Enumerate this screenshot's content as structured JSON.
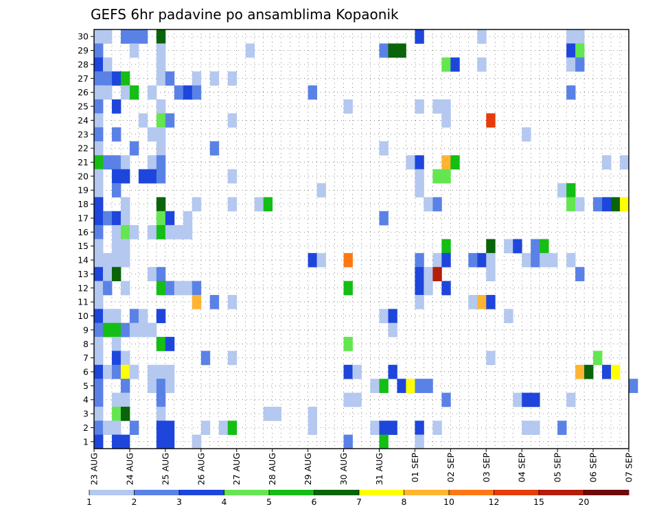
{
  "chart_data": {
    "type": "heatmap",
    "title": "GEFS 6hr padavine po ansamblima Kopaonik",
    "xlabel": "",
    "ylabel": "",
    "x_start": "2023-08-23",
    "x_ticks": [
      "23 AUG",
      "24 AUG",
      "25 AUG",
      "26 AUG",
      "27 AUG",
      "28 AUG",
      "29 AUG",
      "30 AUG",
      "31 AUG",
      "01 SEP",
      "02 SEP",
      "03 SEP",
      "04 SEP",
      "05 SEP",
      "06 SEP",
      "07 SEP"
    ],
    "y_ticks": [
      1,
      2,
      3,
      4,
      5,
      6,
      7,
      8,
      9,
      10,
      11,
      12,
      13,
      14,
      15,
      16,
      17,
      18,
      19,
      20,
      21,
      22,
      23,
      24,
      25,
      26,
      27,
      28,
      29,
      30
    ],
    "ylim": [
      0,
      30
    ],
    "grid": true,
    "colorbar": {
      "ticks": [
        "1",
        "2",
        "3",
        "4",
        "5",
        "6",
        "7",
        "8",
        "10",
        "12",
        "15",
        "20"
      ],
      "colors": [
        "#b4c8f0",
        "#5a82e6",
        "#1e46dc",
        "#64e650",
        "#14be14",
        "#0a640a",
        "#ffff00",
        "#ffb432",
        "#ff7814",
        "#e63c0a",
        "#b41e0a",
        "#6e0a0a"
      ]
    },
    "member_rows": [
      {
        "member": 30,
        "cells": [
          [
            0,
            1
          ],
          [
            1,
            1
          ],
          [
            3,
            2
          ],
          [
            4,
            2
          ],
          [
            5,
            2
          ],
          [
            7,
            6
          ],
          [
            36,
            3
          ],
          [
            43,
            1
          ],
          [
            53,
            1
          ],
          [
            54,
            1
          ]
        ]
      },
      {
        "member": 29,
        "cells": [
          [
            0,
            2
          ],
          [
            4,
            1
          ],
          [
            7,
            1
          ],
          [
            17,
            1
          ],
          [
            32,
            2
          ],
          [
            33,
            6
          ],
          [
            34,
            6
          ],
          [
            53,
            3
          ],
          [
            54,
            4
          ]
        ]
      },
      {
        "member": 28,
        "cells": [
          [
            0,
            3
          ],
          [
            1,
            1
          ],
          [
            7,
            1
          ],
          [
            39,
            4
          ],
          [
            40,
            3
          ],
          [
            43,
            1
          ],
          [
            53,
            1
          ],
          [
            54,
            2
          ]
        ]
      },
      {
        "member": 27,
        "cells": [
          [
            0,
            2
          ],
          [
            1,
            2
          ],
          [
            2,
            3
          ],
          [
            3,
            5
          ],
          [
            7,
            1
          ],
          [
            8,
            2
          ],
          [
            11,
            1
          ],
          [
            13,
            1
          ],
          [
            15,
            1
          ]
        ]
      },
      {
        "member": 26,
        "cells": [
          [
            0,
            1
          ],
          [
            1,
            1
          ],
          [
            3,
            1
          ],
          [
            4,
            5
          ],
          [
            6,
            1
          ],
          [
            9,
            2
          ],
          [
            10,
            3
          ],
          [
            11,
            2
          ],
          [
            24,
            2
          ],
          [
            53,
            2
          ]
        ]
      },
      {
        "member": 25,
        "cells": [
          [
            0,
            2
          ],
          [
            2,
            3
          ],
          [
            7,
            1
          ],
          [
            28,
            1
          ],
          [
            36,
            1
          ],
          [
            38,
            1
          ],
          [
            39,
            1
          ]
        ]
      },
      {
        "member": 24,
        "cells": [
          [
            0,
            1
          ],
          [
            5,
            1
          ],
          [
            7,
            4
          ],
          [
            8,
            2
          ],
          [
            15,
            1
          ],
          [
            39,
            1
          ],
          [
            44,
            10
          ]
        ]
      },
      {
        "member": 23,
        "cells": [
          [
            0,
            2
          ],
          [
            2,
            2
          ],
          [
            6,
            1
          ],
          [
            7,
            1
          ],
          [
            48,
            1
          ]
        ]
      },
      {
        "member": 22,
        "cells": [
          [
            0,
            1
          ],
          [
            4,
            2
          ],
          [
            7,
            1
          ],
          [
            13,
            2
          ],
          [
            32,
            1
          ]
        ]
      },
      {
        "member": 21,
        "cells": [
          [
            0,
            5
          ],
          [
            1,
            2
          ],
          [
            2,
            2
          ],
          [
            3,
            1
          ],
          [
            6,
            1
          ],
          [
            7,
            2
          ],
          [
            35,
            1
          ],
          [
            36,
            3
          ],
          [
            39,
            8
          ],
          [
            40,
            5
          ],
          [
            57,
            1
          ],
          [
            59,
            1
          ]
        ]
      },
      {
        "member": 20,
        "cells": [
          [
            0,
            1
          ],
          [
            2,
            3
          ],
          [
            3,
            3
          ],
          [
            5,
            3
          ],
          [
            6,
            3
          ],
          [
            7,
            2
          ],
          [
            15,
            1
          ],
          [
            36,
            1
          ],
          [
            38,
            4
          ],
          [
            39,
            4
          ]
        ]
      },
      {
        "member": 19,
        "cells": [
          [
            0,
            1
          ],
          [
            2,
            2
          ],
          [
            25,
            1
          ],
          [
            36,
            1
          ],
          [
            52,
            1
          ],
          [
            53,
            5
          ]
        ]
      },
      {
        "member": 18,
        "cells": [
          [
            0,
            3
          ],
          [
            3,
            1
          ],
          [
            7,
            6
          ],
          [
            11,
            1
          ],
          [
            15,
            1
          ],
          [
            18,
            1
          ],
          [
            19,
            5
          ],
          [
            37,
            1
          ],
          [
            38,
            2
          ],
          [
            53,
            4
          ],
          [
            54,
            1
          ],
          [
            56,
            2
          ],
          [
            57,
            3
          ],
          [
            58,
            6
          ],
          [
            59,
            7
          ]
        ]
      },
      {
        "member": 17,
        "cells": [
          [
            0,
            3
          ],
          [
            1,
            2
          ],
          [
            2,
            3
          ],
          [
            3,
            1
          ],
          [
            7,
            4
          ],
          [
            8,
            3
          ],
          [
            10,
            1
          ],
          [
            32,
            2
          ]
        ]
      },
      {
        "member": 16,
        "cells": [
          [
            0,
            2
          ],
          [
            2,
            1
          ],
          [
            3,
            4
          ],
          [
            4,
            1
          ],
          [
            6,
            1
          ],
          [
            7,
            5
          ],
          [
            8,
            1
          ],
          [
            9,
            1
          ],
          [
            10,
            1
          ]
        ]
      },
      {
        "member": 15,
        "cells": [
          [
            0,
            1
          ],
          [
            2,
            1
          ],
          [
            3,
            1
          ],
          [
            39,
            5
          ],
          [
            44,
            6
          ],
          [
            46,
            1
          ],
          [
            47,
            3
          ],
          [
            49,
            2
          ],
          [
            50,
            5
          ]
        ]
      },
      {
        "member": 14,
        "cells": [
          [
            0,
            1
          ],
          [
            1,
            1
          ],
          [
            2,
            1
          ],
          [
            3,
            1
          ],
          [
            24,
            3
          ],
          [
            25,
            1
          ],
          [
            28,
            9
          ],
          [
            36,
            2
          ],
          [
            38,
            1
          ],
          [
            39,
            3
          ],
          [
            42,
            2
          ],
          [
            43,
            3
          ],
          [
            44,
            1
          ],
          [
            48,
            1
          ],
          [
            49,
            2
          ],
          [
            50,
            1
          ],
          [
            51,
            1
          ],
          [
            53,
            1
          ]
        ]
      },
      {
        "member": 13,
        "cells": [
          [
            0,
            3
          ],
          [
            1,
            1
          ],
          [
            2,
            6
          ],
          [
            6,
            1
          ],
          [
            7,
            2
          ],
          [
            36,
            3
          ],
          [
            37,
            1
          ],
          [
            38,
            11
          ],
          [
            44,
            1
          ],
          [
            54,
            2
          ]
        ]
      },
      {
        "member": 12,
        "cells": [
          [
            0,
            1
          ],
          [
            1,
            2
          ],
          [
            3,
            1
          ],
          [
            7,
            5
          ],
          [
            8,
            2
          ],
          [
            9,
            1
          ],
          [
            10,
            1
          ],
          [
            11,
            2
          ],
          [
            28,
            5
          ],
          [
            36,
            3
          ],
          [
            37,
            1
          ],
          [
            39,
            3
          ]
        ]
      },
      {
        "member": 11,
        "cells": [
          [
            0,
            1
          ],
          [
            11,
            8
          ],
          [
            13,
            2
          ],
          [
            15,
            1
          ],
          [
            36,
            1
          ],
          [
            42,
            1
          ],
          [
            43,
            8
          ],
          [
            44,
            3
          ]
        ]
      },
      {
        "member": 10,
        "cells": [
          [
            0,
            3
          ],
          [
            1,
            1
          ],
          [
            2,
            1
          ],
          [
            4,
            2
          ],
          [
            5,
            1
          ],
          [
            7,
            3
          ],
          [
            32,
            1
          ],
          [
            33,
            3
          ],
          [
            46,
            1
          ]
        ]
      },
      {
        "member": 9,
        "cells": [
          [
            0,
            2
          ],
          [
            1,
            5
          ],
          [
            2,
            5
          ],
          [
            3,
            2
          ],
          [
            4,
            1
          ],
          [
            5,
            1
          ],
          [
            6,
            1
          ],
          [
            33,
            1
          ]
        ]
      },
      {
        "member": 8,
        "cells": [
          [
            0,
            1
          ],
          [
            2,
            1
          ],
          [
            7,
            5
          ],
          [
            8,
            3
          ],
          [
            28,
            4
          ]
        ]
      },
      {
        "member": 7,
        "cells": [
          [
            0,
            1
          ],
          [
            2,
            3
          ],
          [
            3,
            1
          ],
          [
            12,
            2
          ],
          [
            15,
            1
          ],
          [
            44,
            1
          ],
          [
            56,
            4
          ]
        ]
      },
      {
        "member": 6,
        "cells": [
          [
            0,
            3
          ],
          [
            1,
            1
          ],
          [
            2,
            2
          ],
          [
            3,
            7
          ],
          [
            4,
            1
          ],
          [
            6,
            1
          ],
          [
            7,
            1
          ],
          [
            8,
            1
          ],
          [
            28,
            3
          ],
          [
            29,
            1
          ],
          [
            33,
            3
          ],
          [
            54,
            8
          ],
          [
            55,
            6
          ],
          [
            57,
            3
          ],
          [
            58,
            7
          ]
        ]
      },
      {
        "member": 5,
        "cells": [
          [
            0,
            2
          ],
          [
            3,
            2
          ],
          [
            6,
            1
          ],
          [
            7,
            2
          ],
          [
            8,
            1
          ],
          [
            31,
            1
          ],
          [
            32,
            5
          ],
          [
            34,
            3
          ],
          [
            35,
            7
          ],
          [
            36,
            2
          ],
          [
            37,
            2
          ],
          [
            60,
            2
          ]
        ]
      },
      {
        "member": 4,
        "cells": [
          [
            0,
            2
          ],
          [
            2,
            1
          ],
          [
            3,
            1
          ],
          [
            7,
            2
          ],
          [
            28,
            1
          ],
          [
            29,
            1
          ],
          [
            39,
            2
          ],
          [
            47,
            1
          ],
          [
            48,
            3
          ],
          [
            49,
            3
          ],
          [
            53,
            1
          ]
        ]
      },
      {
        "member": 3,
        "cells": [
          [
            0,
            1
          ],
          [
            2,
            4
          ],
          [
            3,
            6
          ],
          [
            7,
            1
          ],
          [
            19,
            1
          ],
          [
            20,
            1
          ],
          [
            24,
            1
          ]
        ]
      },
      {
        "member": 2,
        "cells": [
          [
            0,
            2
          ],
          [
            1,
            1
          ],
          [
            2,
            1
          ],
          [
            4,
            2
          ],
          [
            7,
            3
          ],
          [
            8,
            3
          ],
          [
            12,
            1
          ],
          [
            14,
            1
          ],
          [
            15,
            5
          ],
          [
            24,
            1
          ],
          [
            31,
            1
          ],
          [
            32,
            3
          ],
          [
            33,
            3
          ],
          [
            36,
            3
          ],
          [
            38,
            1
          ],
          [
            48,
            1
          ],
          [
            49,
            1
          ],
          [
            52,
            2
          ]
        ]
      },
      {
        "member": 1,
        "cells": [
          [
            0,
            3
          ],
          [
            2,
            3
          ],
          [
            3,
            3
          ],
          [
            7,
            3
          ],
          [
            8,
            3
          ],
          [
            11,
            1
          ],
          [
            28,
            2
          ],
          [
            32,
            5
          ],
          [
            36,
            1
          ]
        ]
      }
    ]
  }
}
